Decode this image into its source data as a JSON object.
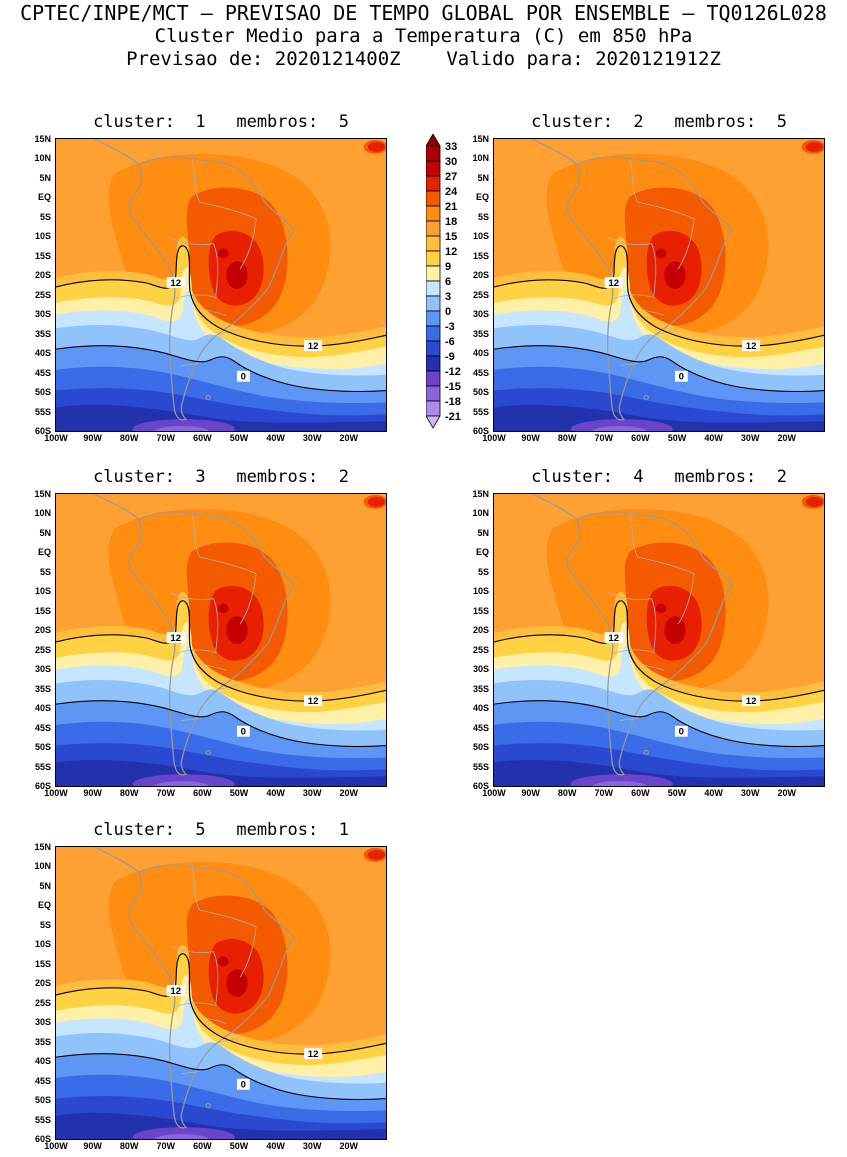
{
  "header": {
    "line1": "CPTEC/INPE/MCT — PREVISAO DE TEMPO GLOBAL POR ENSEMBLE — TQ0126L028",
    "line2": "Cluster Medio para a Temperatura (C) em 850 hPa",
    "line3": "Previsao de: 2020121400Z    Valido para: 2020121912Z"
  },
  "panels": [
    {
      "title": "cluster:  1   membros:  5",
      "cluster": 1,
      "membros": 5
    },
    {
      "title": "cluster:  2   membros:  5",
      "cluster": 2,
      "membros": 5
    },
    {
      "title": "cluster:  3   membros:  2",
      "cluster": 3,
      "membros": 2
    },
    {
      "title": "cluster:  4   membros:  2",
      "cluster": 4,
      "membros": 2
    },
    {
      "title": "cluster:  5   membros:  1",
      "cluster": 5,
      "membros": 1
    }
  ],
  "axes": {
    "lat": [
      "15N",
      "10N",
      "5N",
      "EQ",
      "5S",
      "10S",
      "15S",
      "20S",
      "25S",
      "30S",
      "35S",
      "40S",
      "45S",
      "50S",
      "55S",
      "60S"
    ],
    "lon": [
      "100W",
      "90W",
      "80W",
      "70W",
      "60W",
      "50W",
      "40W",
      "30W",
      "20W"
    ]
  },
  "colorbar": {
    "ticks": [
      "33",
      "30",
      "27",
      "24",
      "21",
      "18",
      "15",
      "12",
      "9",
      "6",
      "3",
      "0",
      "-3",
      "-6",
      "-9",
      "-12",
      "-15",
      "-18",
      "-21"
    ],
    "colors": [
      "#8F0000",
      "#AF0000",
      "#C40000",
      "#E62000",
      "#F45A00",
      "#FF8D12",
      "#FFA132",
      "#FFBE3C",
      "#FFD243",
      "#FFF0A8",
      "#C6E6FF",
      "#90C2FC",
      "#5E96F5",
      "#3B6CE8",
      "#2A48D0",
      "#2132AC",
      "#6A44CC",
      "#8A66DE",
      "#AB8CEC",
      "#CDB6F6"
    ]
  },
  "map": {
    "contour_label_12": "12",
    "contour_label_0": "0"
  },
  "chart_data": {
    "type": "heatmap",
    "subtype": "filled contour maps of temperature shaded every 3 C over South America",
    "title": "Cluster Medio para a Temperatura (C) em 850 hPa",
    "model": "CPTEC/INPE/MCT Previsao de Tempo Global por Ensemble TQ0126L028",
    "init_time": "2020121400Z",
    "valid_time": "2020121912Z",
    "region": {
      "lat_range": [
        "15N",
        "60S"
      ],
      "lon_range": [
        "100W",
        "20W"
      ]
    },
    "levels_c": [
      33,
      30,
      27,
      24,
      21,
      18,
      15,
      12,
      9,
      6,
      3,
      0,
      -3,
      -6,
      -9,
      -12,
      -15,
      -18,
      -21
    ],
    "labeled_contours_c": [
      12,
      0
    ],
    "legend_position": "vertical colorbar between the two top panels",
    "panels": [
      {
        "cluster": 1,
        "membros": 5
      },
      {
        "cluster": 2,
        "membros": 5
      },
      {
        "cluster": 3,
        "membros": 2
      },
      {
        "cluster": 4,
        "membros": 2
      },
      {
        "cluster": 5,
        "membros": 1
      }
    ]
  }
}
